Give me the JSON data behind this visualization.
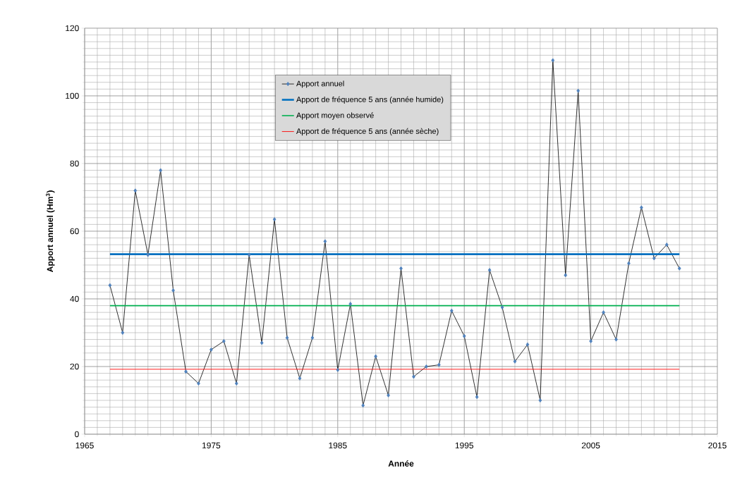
{
  "chart_data": {
    "type": "line",
    "xlabel": "Année",
    "ylabel": "Apport annuel (Hm$^{3}$)",
    "xlim": [
      1965,
      2015
    ],
    "ylim": [
      0,
      120
    ],
    "xticks": [
      1965,
      1975,
      1985,
      1995,
      2005,
      2015
    ],
    "yticks": [
      0,
      20,
      40,
      60,
      80,
      100,
      120
    ],
    "grid": true,
    "legend": "top",
    "marker": "diamond",
    "series": [
      {
        "name": "Apport annuel",
        "color": "#4f81bd",
        "x": [
          1967,
          1968,
          1969,
          1970,
          1971,
          1972,
          1973,
          1974,
          1975,
          1976,
          1977,
          1978,
          1979,
          1980,
          1981,
          1982,
          1983,
          1984,
          1985,
          1986,
          1987,
          1988,
          1989,
          1990,
          1991,
          1992,
          1993,
          1994,
          1995,
          1996,
          1997,
          1998,
          1999,
          2000,
          2001,
          2002,
          2003,
          2004,
          2005,
          2006,
          2007,
          2008,
          2009,
          2010,
          2011,
          2012
        ],
        "values": [
          44,
          30,
          72,
          53,
          78,
          42.5,
          18.5,
          15,
          25,
          27.5,
          15,
          53,
          27,
          63.5,
          28.5,
          16.5,
          28.5,
          57,
          19,
          38.5,
          8.5,
          23,
          11.5,
          49,
          17,
          20,
          20.5,
          36.5,
          29,
          11,
          48.5,
          37.5,
          21.5,
          26.5,
          10,
          110.5,
          47,
          101.5,
          27.5,
          36,
          28,
          50.5,
          67,
          52,
          56,
          49
        ]
      },
      {
        "name": "Apport de fréquence 5 ans (année humide)",
        "color": "#0070c0",
        "type": "line",
        "marker": "none",
        "x": [
          1967,
          2012
        ],
        "values": [
          53.2,
          53.2
        ]
      },
      {
        "name": "Apport moyen observé",
        "color": "#00b050",
        "type": "line",
        "marker": "none",
        "x": [
          1967,
          2012
        ],
        "values": [
          38,
          38
        ]
      },
      {
        "name": "Apport de fréquence 5 ans (année sèche)",
        "color": "#ff0000",
        "type": "line",
        "marker": "none",
        "x": [
          1967,
          2012
        ],
        "values": [
          19.2,
          19.2
        ]
      }
    ]
  }
}
